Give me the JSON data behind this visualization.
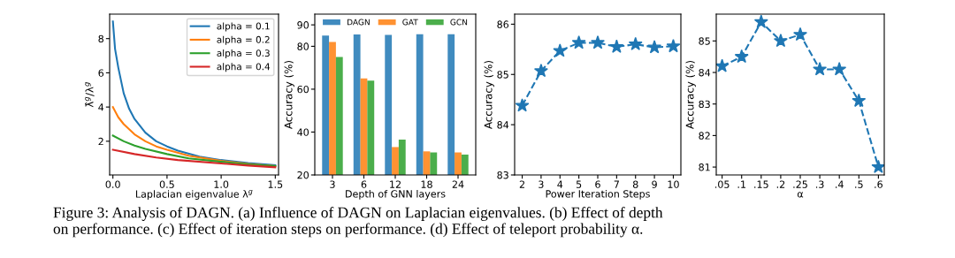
{
  "chart_data": [
    {
      "type": "line",
      "xlabel": "Laplacian eigenvalue λ$^{g}$",
      "ylabel": "λ̂$^{g}$/λ$^{g}$",
      "xlim": [
        -0.03,
        1.53
      ],
      "ylim": [
        0.03,
        9.43
      ],
      "xticks": [
        {
          "value": 0,
          "label": "0.0"
        },
        0.5,
        {
          "value": 1,
          "label": "1.0"
        },
        1.5
      ],
      "yticks": [
        2,
        4,
        6,
        8
      ],
      "legend": "top right",
      "grid": false,
      "series": [
        {
          "name": "alpha = 0.1",
          "color": "#1f77b4",
          "x": [
            0,
            0.02,
            0.05,
            0.1,
            0.15,
            0.2,
            0.3,
            0.4,
            0.5,
            0.6,
            0.8,
            1.0,
            1.25,
            1.5
          ],
          "values": [
            9.0,
            7.4,
            6.3,
            4.8,
            3.9,
            3.3,
            2.5,
            2.0,
            1.7,
            1.45,
            1.1,
            0.9,
            0.72,
            0.6
          ]
        },
        {
          "name": "alpha = 0.2",
          "color": "#ff7f0e",
          "x": [
            0,
            0.05,
            0.1,
            0.2,
            0.3,
            0.4,
            0.5,
            0.7,
            1.0,
            1.25,
            1.5
          ],
          "values": [
            4.0,
            3.4,
            3.0,
            2.4,
            2.0,
            1.7,
            1.5,
            1.15,
            0.85,
            0.68,
            0.55
          ]
        },
        {
          "name": "alpha = 0.3",
          "color": "#2ca02c",
          "x": [
            0,
            0.1,
            0.2,
            0.3,
            0.5,
            0.7,
            1.0,
            1.25,
            1.5
          ],
          "values": [
            2.33,
            2.0,
            1.75,
            1.55,
            1.25,
            1.0,
            0.8,
            0.65,
            0.55
          ]
        },
        {
          "name": "alpha = 0.4",
          "color": "#d62728",
          "x": [
            0,
            0.2,
            0.4,
            0.6,
            1.0,
            1.25,
            1.5
          ],
          "values": [
            1.5,
            1.25,
            1.05,
            0.9,
            0.7,
            0.58,
            0.48
          ]
        }
      ]
    },
    {
      "type": "bar",
      "xlabel": "Depth of GNN layers",
      "ylabel": "Accuracy (%)",
      "categories": [
        "3",
        "6",
        "12",
        "18",
        "24"
      ],
      "ylim": [
        20,
        95
      ],
      "yticks": [
        20,
        40,
        60,
        80,
        90
      ],
      "legend": "top",
      "grid": false,
      "series": [
        {
          "name": "DAGN",
          "color": "#1f77b4",
          "values": [
            85,
            85.5,
            85.3,
            85.6,
            85.6
          ]
        },
        {
          "name": "GAT",
          "color": "#ff7f0e",
          "values": [
            82,
            65,
            33,
            31,
            30.5
          ]
        },
        {
          "name": "GCN",
          "color": "#2ca02c",
          "values": [
            75,
            64,
            36.5,
            30.5,
            29.5
          ]
        }
      ]
    },
    {
      "type": "line",
      "xlabel": "Power Iteration Steps",
      "ylabel": "Accuracy (%)",
      "xlim": [
        1.6,
        10.4
      ],
      "ylim": [
        83,
        86.2
      ],
      "xticks": [
        2,
        3,
        4,
        5,
        6,
        7,
        8,
        9,
        10
      ],
      "yticks": [
        83,
        84,
        85,
        86
      ],
      "marker": "star",
      "line_style": "dashed",
      "grid": false,
      "series": [
        {
          "color": "#1f77b4",
          "x": [
            2,
            3,
            4,
            5,
            6,
            7,
            8,
            9,
            10
          ],
          "values": [
            84.38,
            85.07,
            85.47,
            85.63,
            85.63,
            85.55,
            85.6,
            85.54,
            85.56
          ]
        }
      ]
    },
    {
      "type": "line",
      "xlabel": "α",
      "ylabel": "Accuracy (%)",
      "categories": [
        ".05",
        ".1",
        ".15",
        ".2",
        ".25",
        ".3",
        ".4",
        ".5",
        ".6"
      ],
      "ylim": [
        80.75,
        85.85
      ],
      "yticks": [
        81,
        82,
        83,
        84,
        85
      ],
      "marker": "star",
      "line_style": "dashed",
      "grid": false,
      "series": [
        {
          "color": "#1f77b4",
          "values": [
            84.2,
            84.5,
            85.6,
            85.0,
            85.2,
            84.1,
            84.1,
            83.1,
            81.0
          ]
        }
      ],
      "annotations": [
        "Figure 3: Analysis of DAGN. (a) Influence of DAGN on Laplacian eigenvalues. (b) Effect of depth\non performance. (c) Effect of iteration steps on performance. (d) Effect of teleport probability α."
      ]
    }
  ]
}
